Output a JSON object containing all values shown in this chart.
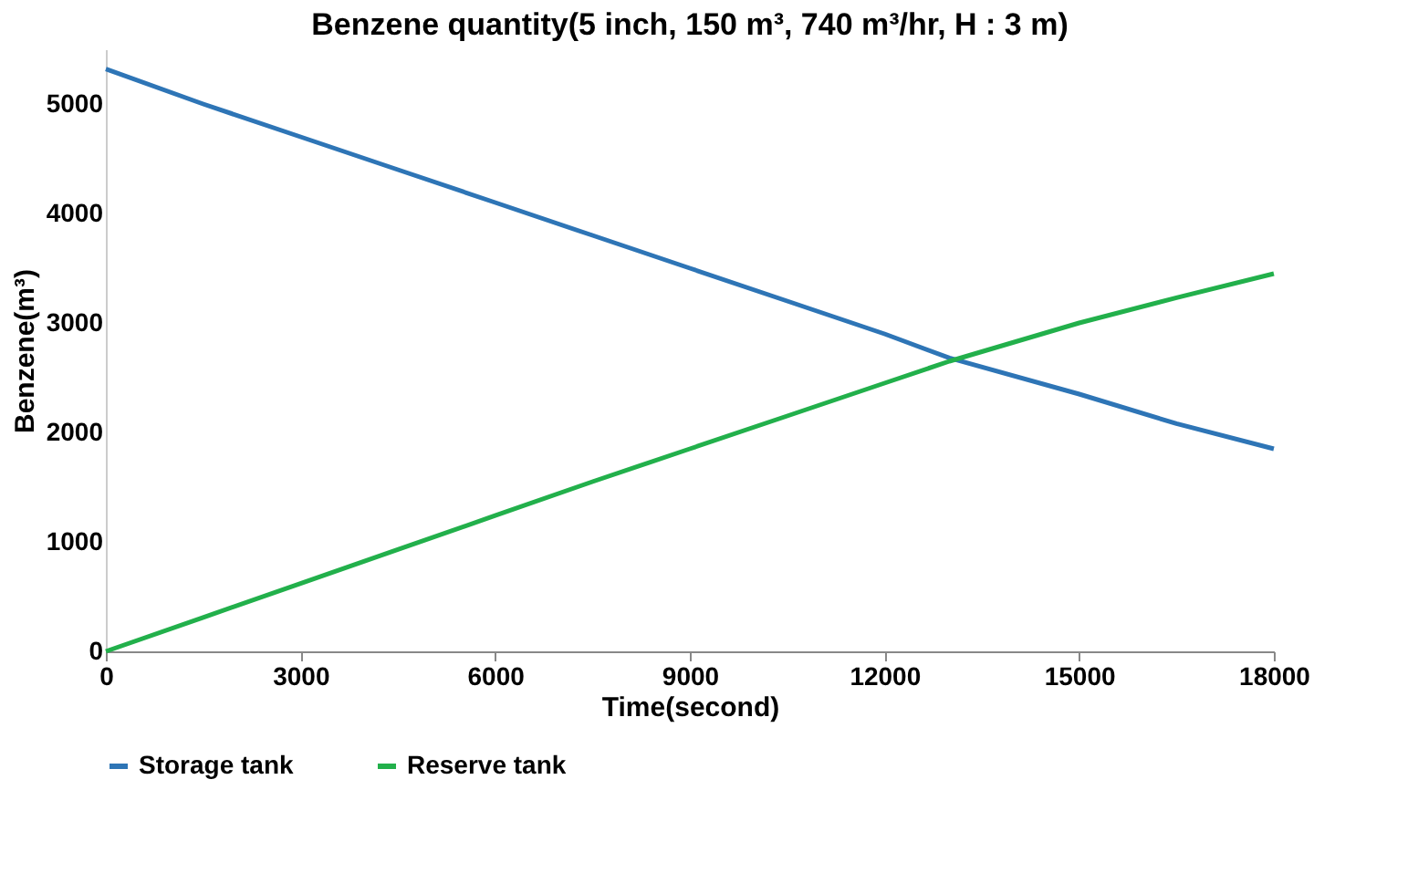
{
  "chart_data": {
    "type": "line",
    "title": "Benzene quantity(5 inch, 150 m³, 740 m³/hr, H : 3 m)",
    "xlabel": "Time(second)",
    "ylabel": "Benzene(m³)",
    "x": [
      0,
      1500,
      3000,
      4500,
      6000,
      7500,
      9000,
      10500,
      12000,
      13000,
      15000,
      16500,
      18000
    ],
    "series": [
      {
        "name": "Storage tank",
        "color": "#2e75b6",
        "values": [
          5320,
          5000,
          4700,
          4400,
          4100,
          3800,
          3500,
          3200,
          2900,
          2680,
          2350,
          2080,
          1850
        ]
      },
      {
        "name": "Reserve tank",
        "color": "#22b04b",
        "values": [
          0,
          310,
          620,
          930,
          1240,
          1550,
          1850,
          2150,
          2450,
          2650,
          3000,
          3230,
          3450
        ]
      }
    ],
    "xlim": [
      0,
      18000
    ],
    "xticks": [
      0,
      3000,
      6000,
      9000,
      12000,
      15000,
      18000
    ],
    "ylim": [
      0,
      5500
    ],
    "yticks": [
      0,
      1000,
      2000,
      3000,
      4000,
      5000
    ],
    "grid": false,
    "legend": "bottom",
    "marker": "none",
    "line_style": "solid"
  }
}
